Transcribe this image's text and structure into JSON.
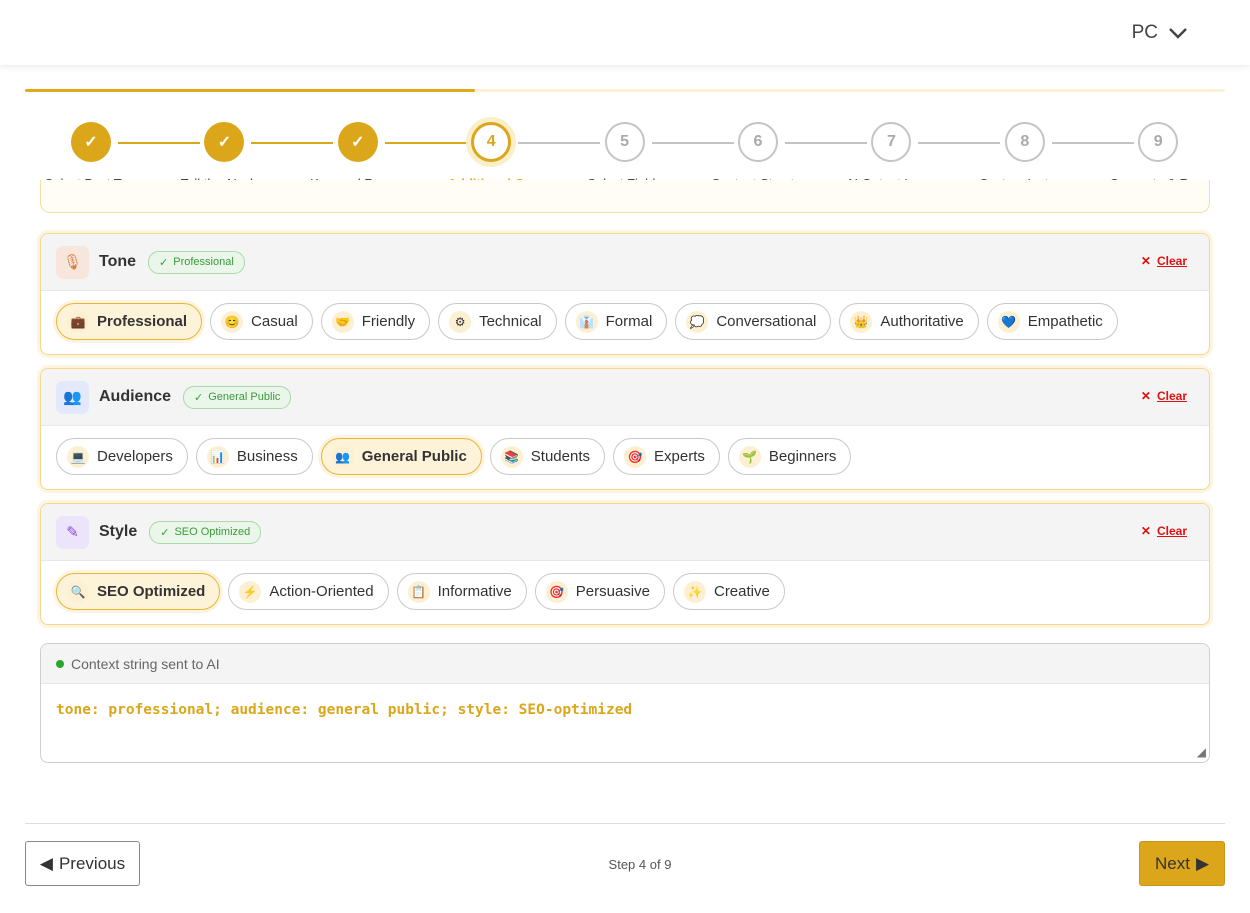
{
  "header": {
    "device": "PC"
  },
  "progress": {
    "percent": 37.5
  },
  "steps": [
    {
      "n": "1",
      "label": "Select Post Ty...",
      "state": "done"
    },
    {
      "n": "2",
      "label": "Tell the AI wh...",
      "state": "done"
    },
    {
      "n": "3",
      "label": "Keyword Rese...",
      "state": "done"
    },
    {
      "n": "4",
      "label": "Additional C...",
      "state": "active"
    },
    {
      "n": "5",
      "label": "Select Fields",
      "state": "todo"
    },
    {
      "n": "6",
      "label": "Content Struct...",
      "state": "todo"
    },
    {
      "n": "7",
      "label": "AI Output Lan...",
      "state": "todo"
    },
    {
      "n": "8",
      "label": "Custom Instru...",
      "state": "todo"
    },
    {
      "n": "9",
      "label": "Generate & Re...",
      "state": "todo"
    }
  ],
  "sections": [
    {
      "title": "Tone",
      "icon": "🎙",
      "badge": "Professional",
      "clear": "Clear",
      "options": [
        {
          "label": "Professional",
          "emoji": "💼",
          "selected": true
        },
        {
          "label": "Casual",
          "emoji": "😊"
        },
        {
          "label": "Friendly",
          "emoji": "🤝"
        },
        {
          "label": "Technical",
          "emoji": "⚙"
        },
        {
          "label": "Formal",
          "emoji": "👔"
        },
        {
          "label": "Conversational",
          "emoji": "💭"
        },
        {
          "label": "Authoritative",
          "emoji": "👑"
        },
        {
          "label": "Empathetic",
          "emoji": "💙"
        }
      ]
    },
    {
      "title": "Audience",
      "icon": "👥",
      "badge": "General Public",
      "clear": "Clear",
      "options": [
        {
          "label": "Developers",
          "emoji": "💻"
        },
        {
          "label": "Business",
          "emoji": "📊"
        },
        {
          "label": "General Public",
          "emoji": "👥",
          "selected": true
        },
        {
          "label": "Students",
          "emoji": "📚"
        },
        {
          "label": "Experts",
          "emoji": "🎯"
        },
        {
          "label": "Beginners",
          "emoji": "🌱"
        }
      ]
    },
    {
      "title": "Style",
      "icon": "✎",
      "badge": "SEO Optimized",
      "clear": "Clear",
      "options": [
        {
          "label": "SEO Optimized",
          "emoji": "🔍",
          "selected": true
        },
        {
          "label": "Action-Oriented",
          "emoji": "⚡"
        },
        {
          "label": "Informative",
          "emoji": "📋"
        },
        {
          "label": "Persuasive",
          "emoji": "🎯"
        },
        {
          "label": "Creative",
          "emoji": "✨"
        }
      ]
    }
  ],
  "context": {
    "label": "Context string sent to AI",
    "value": "tone: professional; audience: general public; style: SEO-optimized"
  },
  "footer": {
    "previous": "Previous",
    "next": "Next",
    "step_text": "Step 4 of 9"
  },
  "colors": {
    "accent": "#dca61b",
    "clear": "#dd1111",
    "badge_green": "#3b9a3b"
  }
}
